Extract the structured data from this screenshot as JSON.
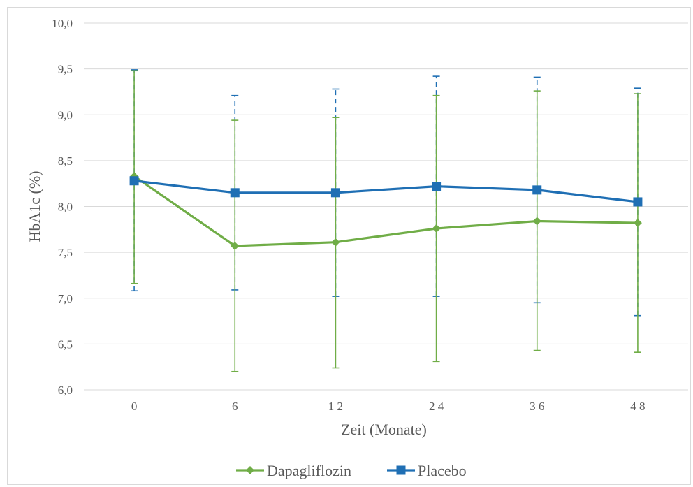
{
  "chart_data": {
    "type": "line",
    "title": "",
    "xlabel": "Zeit (Monate)",
    "ylabel": "HbA1c (%)",
    "ylim": [
      6.0,
      10.0
    ],
    "ytick_step": 0.5,
    "ytick_labels": [
      "6,0",
      "6,5",
      "7,0",
      "7,5",
      "8,0",
      "8,5",
      "9,0",
      "9,5",
      "10,0"
    ],
    "categories": [
      "0",
      "6",
      "12",
      "24",
      "36",
      "48"
    ],
    "category_labels": [
      "0",
      "6",
      "1 2",
      "2 4",
      "3 6",
      "4 8"
    ],
    "grid": true,
    "legend_position": "bottom",
    "series": [
      {
        "name": "Dapagliflozin",
        "color": "#70ad47",
        "marker": "diamond",
        "values": [
          8.33,
          7.57,
          7.61,
          7.76,
          7.84,
          7.82
        ],
        "error_low": [
          7.16,
          6.2,
          6.24,
          6.31,
          6.43,
          6.41
        ],
        "error_high": [
          9.48,
          8.94,
          8.97,
          9.21,
          9.26,
          9.23
        ]
      },
      {
        "name": "Placebo",
        "color": "#1f6fb4",
        "marker": "square",
        "values": [
          8.28,
          8.15,
          8.15,
          8.22,
          8.18,
          8.05
        ],
        "error_low": [
          7.08,
          7.09,
          7.02,
          7.02,
          6.95,
          6.81
        ],
        "error_high": [
          9.49,
          9.21,
          9.28,
          9.42,
          9.41,
          9.29
        ]
      }
    ]
  }
}
